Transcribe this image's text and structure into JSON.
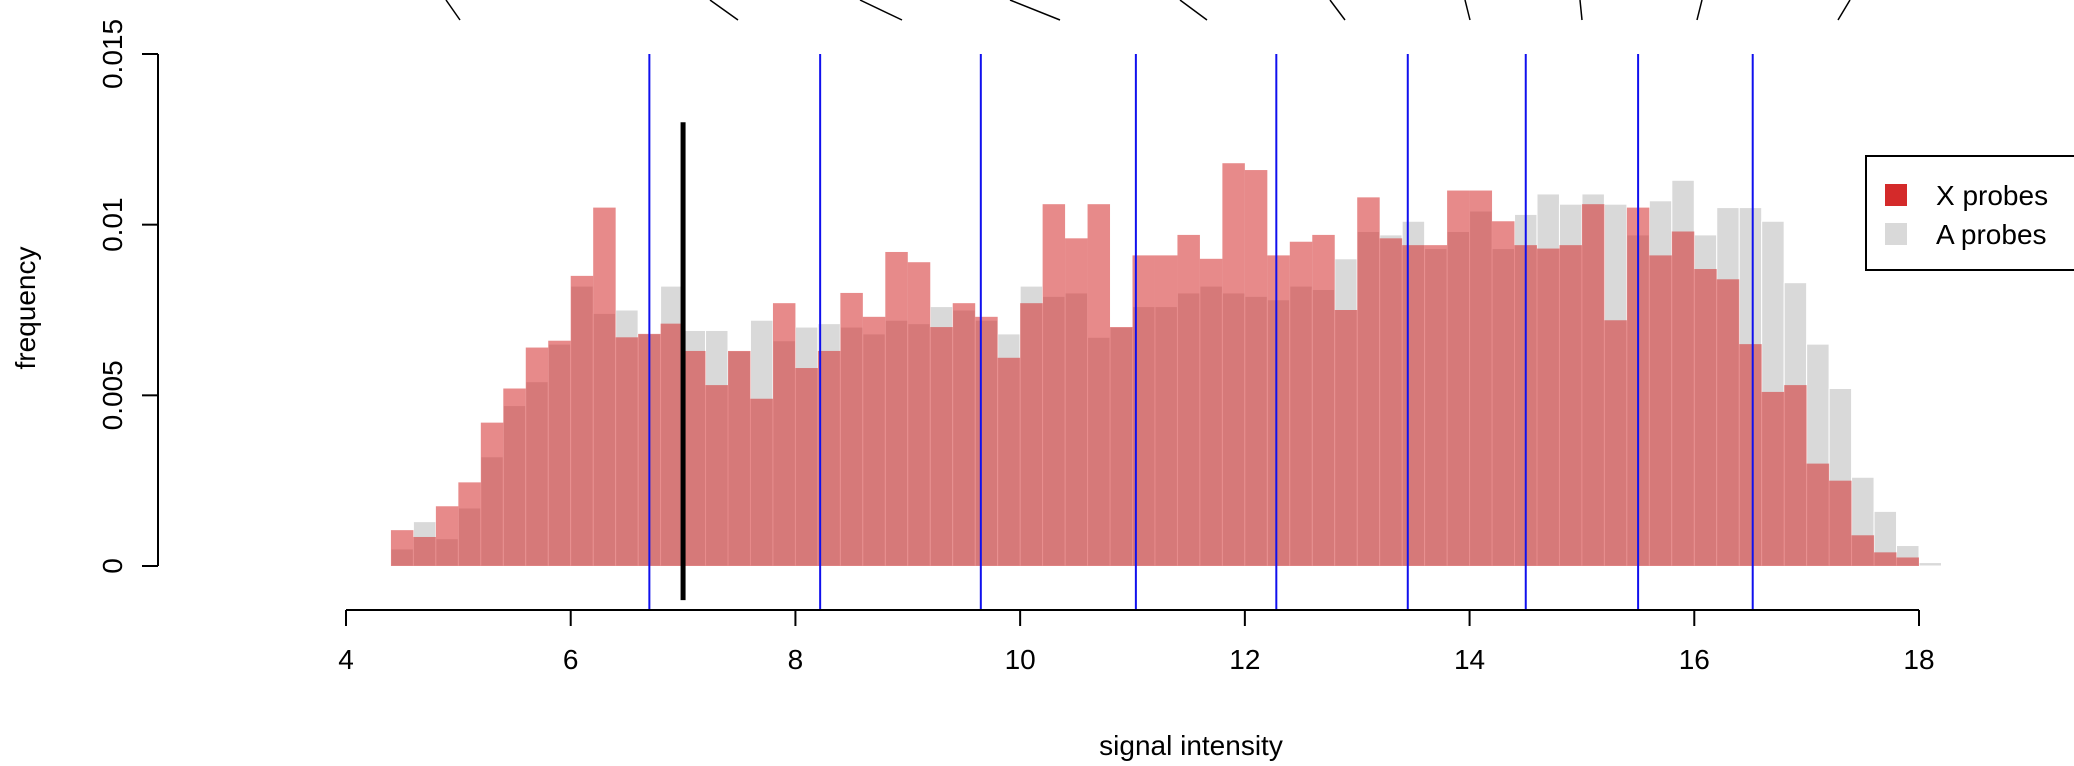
{
  "chart_data": {
    "type": "bar",
    "xlabel": "signal intensity",
    "ylabel": "frequency",
    "xlim": [
      4,
      18
    ],
    "ylim": [
      0,
      0.015
    ],
    "x_ticks": [
      4,
      6,
      8,
      10,
      12,
      14,
      16,
      18
    ],
    "x_tick_labels": [
      "4",
      "6",
      "8",
      "10",
      "12",
      "14",
      "16",
      "18"
    ],
    "y_ticks": [
      0,
      0.005,
      0.01,
      0.015
    ],
    "y_tick_labels": [
      "0",
      "0.005",
      "0.01",
      "0.015"
    ],
    "bin_width": 0.2,
    "bin_starts": [
      4.4,
      4.6,
      4.8,
      5.0,
      5.2,
      5.4,
      5.6,
      5.8,
      6.0,
      6.2,
      6.4,
      6.6,
      6.8,
      7.0,
      7.2,
      7.4,
      7.6,
      7.8,
      8.0,
      8.2,
      8.4,
      8.6,
      8.8,
      9.0,
      9.2,
      9.4,
      9.6,
      9.8,
      10.0,
      10.2,
      10.4,
      10.6,
      10.8,
      11.0,
      11.2,
      11.4,
      11.6,
      11.8,
      12.0,
      12.2,
      12.4,
      12.6,
      12.8,
      13.0,
      13.2,
      13.4,
      13.6,
      13.8,
      14.0,
      14.2,
      14.4,
      14.6,
      14.8,
      15.0,
      15.2,
      15.4,
      15.6,
      15.8,
      16.0,
      16.2,
      16.4,
      16.6,
      16.8,
      17.0,
      17.2,
      17.4,
      17.6,
      17.8,
      18.0
    ],
    "series": [
      {
        "name": "X probes",
        "color": "#d42a2a",
        "values": [
          0.00105,
          0.00085,
          0.00175,
          0.00245,
          0.0042,
          0.0052,
          0.0064,
          0.0066,
          0.0085,
          0.0105,
          0.0067,
          0.0068,
          0.0071,
          0.0063,
          0.0053,
          0.0063,
          0.0049,
          0.0077,
          0.0058,
          0.0063,
          0.008,
          0.0073,
          0.0092,
          0.0089,
          0.007,
          0.0077,
          0.0073,
          0.0061,
          0.0077,
          0.0106,
          0.0096,
          0.0106,
          0.007,
          0.0091,
          0.0091,
          0.0097,
          0.009,
          0.0118,
          0.0116,
          0.0091,
          0.0095,
          0.0097,
          0.0075,
          0.0108,
          0.0096,
          0.0094,
          0.0094,
          0.011,
          0.011,
          0.0101,
          0.0094,
          0.0093,
          0.0094,
          0.0106,
          0.0072,
          0.0105,
          0.0091,
          0.0098,
          0.0087,
          0.0084,
          0.0065,
          0.0051,
          0.0053,
          0.003,
          0.0025,
          0.0009,
          0.0004,
          0.00025,
          0.0
        ]
      },
      {
        "name": "A probes",
        "color": "#d9d9d9",
        "values": [
          0.0005,
          0.0013,
          0.0008,
          0.0017,
          0.0032,
          0.0047,
          0.0054,
          0.0065,
          0.0082,
          0.0074,
          0.0075,
          0.0068,
          0.0082,
          0.0069,
          0.0069,
          0.0063,
          0.0072,
          0.0066,
          0.007,
          0.0071,
          0.007,
          0.0068,
          0.0072,
          0.0071,
          0.0076,
          0.0075,
          0.0072,
          0.0068,
          0.0082,
          0.0079,
          0.008,
          0.0067,
          0.007,
          0.0076,
          0.0076,
          0.008,
          0.0082,
          0.008,
          0.0079,
          0.0078,
          0.0082,
          0.0081,
          0.009,
          0.0098,
          0.0097,
          0.0101,
          0.0093,
          0.0098,
          0.0104,
          0.0093,
          0.0103,
          0.0109,
          0.0106,
          0.0109,
          0.0106,
          0.0097,
          0.0107,
          0.0113,
          0.0097,
          0.0105,
          0.0105,
          0.0101,
          0.0083,
          0.0065,
          0.0052,
          0.0026,
          0.0016,
          0.0006,
          0.0001
        ]
      }
    ],
    "blue_reference_lines_x": [
      6.7,
      8.22,
      9.65,
      11.03,
      12.28,
      13.45,
      14.5,
      15.5,
      16.52
    ],
    "black_reference_line_x": 7.0,
    "black_reference_line_y_range": [
      -0.001,
      0.013
    ],
    "legend": {
      "placement": "right",
      "entries": [
        {
          "label": "X probes",
          "color": "#d42a2a"
        },
        {
          "label": "A probes",
          "color": "#d9d9d9"
        }
      ]
    },
    "grid": false
  }
}
